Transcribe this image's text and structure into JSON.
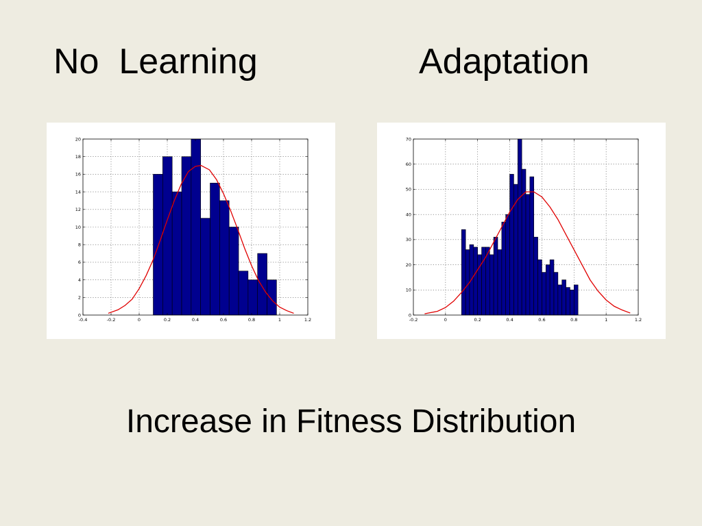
{
  "slide": {
    "title_left": "No  Learning",
    "title_right": "Adaptation",
    "caption": "Increase in Fitness Distribution"
  },
  "colors": {
    "background": "#eeece1",
    "bar_fill": "#00008f",
    "bar_edge": "#000000",
    "fit_curve": "#e00000"
  },
  "chart_data": [
    {
      "type": "bar",
      "title": "",
      "xlabel": "",
      "ylabel": "",
      "xlim": [
        -0.4,
        1.2
      ],
      "ylim": [
        0,
        20
      ],
      "xticks": [
        -0.4,
        -0.2,
        0,
        0.2,
        0.4,
        0.6,
        0.8,
        1,
        1.2
      ],
      "yticks": [
        0,
        2,
        4,
        6,
        8,
        10,
        12,
        14,
        16,
        18,
        20
      ],
      "xtick_labels": [
        "-0.4",
        "-0.2",
        "0",
        "0.2",
        "0.4",
        "0.6",
        "0.8",
        "1",
        "1.2"
      ],
      "ytick_labels": [
        "0",
        "2",
        "4",
        "6",
        "8",
        "10",
        "12",
        "14",
        "16",
        "18",
        "20"
      ],
      "grid": true,
      "bin_start": 0.1,
      "bin_width": 0.0675,
      "values": [
        16,
        18,
        14,
        18,
        20,
        11,
        15,
        13,
        10,
        5,
        4,
        7,
        4
      ],
      "fit_curve": {
        "x": [
          -0.22,
          -0.15,
          -0.1,
          -0.05,
          0,
          0.05,
          0.1,
          0.15,
          0.2,
          0.25,
          0.3,
          0.35,
          0.4,
          0.44,
          0.5,
          0.55,
          0.6,
          0.65,
          0.7,
          0.75,
          0.8,
          0.85,
          0.9,
          0.95,
          1,
          1.05,
          1.1
        ],
        "y": [
          0.2,
          0.6,
          1.1,
          1.8,
          3,
          4.5,
          6.3,
          8.5,
          10.8,
          13,
          14.9,
          16.3,
          16.9,
          17,
          16.5,
          15.4,
          13.8,
          11.9,
          9.8,
          7.6,
          5.6,
          3.9,
          2.6,
          1.6,
          0.9,
          0.5,
          0.2
        ]
      }
    },
    {
      "type": "bar",
      "title": "",
      "xlabel": "",
      "ylabel": "",
      "xlim": [
        -0.2,
        1.2
      ],
      "ylim": [
        0,
        70
      ],
      "xticks": [
        -0.2,
        0,
        0.2,
        0.4,
        0.6,
        0.8,
        1,
        1.2
      ],
      "yticks": [
        0,
        10,
        20,
        30,
        40,
        50,
        60,
        70
      ],
      "xtick_labels": [
        "-0.2",
        "0",
        "0.2",
        "0.4",
        "0.6",
        "0.8",
        "1",
        "1.2"
      ],
      "ytick_labels": [
        "0",
        "10",
        "20",
        "30",
        "40",
        "50",
        "60",
        "70"
      ],
      "grid": true,
      "bin_start": 0.1,
      "bin_width": 0.025,
      "values": [
        34,
        26,
        28,
        27,
        24,
        27,
        27,
        24,
        31,
        26,
        37,
        40,
        56,
        52,
        70,
        58,
        48,
        55,
        31,
        22,
        17,
        20,
        22,
        17,
        12,
        14,
        11,
        10,
        12,
        0,
        0,
        0,
        0,
        0,
        0,
        0
      ],
      "fit_curve": {
        "x": [
          -0.13,
          -0.05,
          0,
          0.05,
          0.1,
          0.15,
          0.2,
          0.25,
          0.3,
          0.35,
          0.4,
          0.45,
          0.5,
          0.55,
          0.6,
          0.65,
          0.7,
          0.75,
          0.8,
          0.85,
          0.9,
          0.95,
          1,
          1.05,
          1.1,
          1.15
        ],
        "y": [
          0.5,
          1.5,
          3,
          5.5,
          9,
          13,
          18,
          23,
          29,
          35,
          41,
          46,
          49,
          49,
          47,
          43,
          38,
          32,
          26,
          20,
          14,
          9.5,
          6,
          3.5,
          2,
          0.8
        ]
      }
    }
  ]
}
